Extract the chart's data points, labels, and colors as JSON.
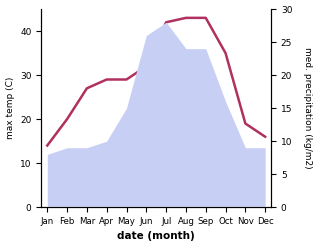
{
  "months": [
    "Jan",
    "Feb",
    "Mar",
    "Apr",
    "May",
    "Jun",
    "Jul",
    "Aug",
    "Sep",
    "Oct",
    "Nov",
    "Dec"
  ],
  "temperature": [
    14,
    20,
    27,
    29,
    29,
    32,
    42,
    43,
    43,
    35,
    19,
    16
  ],
  "precipitation": [
    8,
    9,
    9,
    10,
    15,
    26,
    28,
    24,
    24,
    16,
    9,
    9
  ],
  "temp_color": "#b03060",
  "precip_fill_color": "#c8cff5",
  "xlabel": "date (month)",
  "ylabel_left": "max temp (C)",
  "ylabel_right": "med. precipitation (kg/m2)",
  "ylim_left": [
    0,
    45
  ],
  "ylim_right": [
    0,
    30
  ],
  "yticks_left": [
    0,
    10,
    20,
    30,
    40
  ],
  "yticks_right": [
    0,
    5,
    10,
    15,
    20,
    25,
    30
  ],
  "background_color": "#ffffff",
  "temp_linewidth": 1.8
}
